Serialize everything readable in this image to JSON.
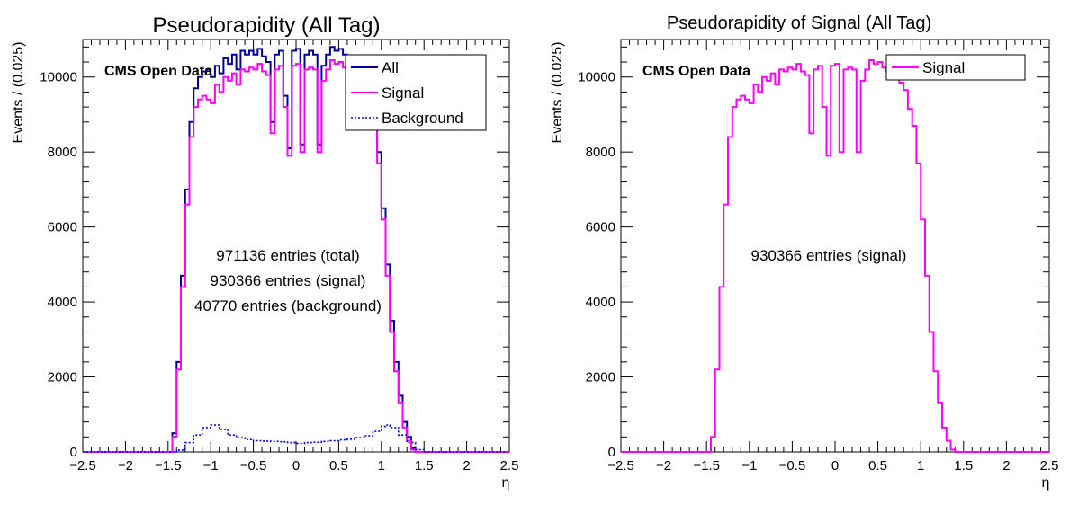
{
  "chart_data": [
    {
      "type": "line",
      "title": "Pseudorapidity (All Tag)",
      "xlabel": "η",
      "ylabel": "Events / (0.025)",
      "xlim": [
        -2.5,
        2.5
      ],
      "ylim": [
        0,
        11000
      ],
      "xticks": [
        -2.5,
        -2,
        -1.5,
        -1,
        -0.5,
        0,
        0.5,
        1,
        1.5,
        2,
        2.5
      ],
      "xtick_labels": [
        "−2.5",
        "−2",
        "−1.5",
        "−1",
        "−0.5",
        "0",
        "0.5",
        "1",
        "1.5",
        "2",
        "2.5"
      ],
      "yticks": [
        0,
        2000,
        4000,
        6000,
        8000,
        10000
      ],
      "ytick_labels": [
        "0",
        "2000",
        "4000",
        "6000",
        "8000",
        "10000"
      ],
      "grid": false,
      "legend_position": "top-right",
      "watermark": "CMS Open Data",
      "annotations": [
        "971136 entries (total)",
        "930366 entries (signal)",
        "40770 entries (background)"
      ],
      "series": [
        {
          "name": "All",
          "color": "#000099",
          "style": "solid",
          "x": [
            -1.5,
            -1.45,
            -1.4,
            -1.35,
            -1.3,
            -1.25,
            -1.2,
            -1.15,
            -1.1,
            -1.05,
            -1.0,
            -0.95,
            -0.9,
            -0.85,
            -0.8,
            -0.75,
            -0.7,
            -0.65,
            -0.6,
            -0.55,
            -0.5,
            -0.45,
            -0.4,
            -0.35,
            -0.3,
            -0.25,
            -0.2,
            -0.15,
            -0.1,
            -0.05,
            0.0,
            0.05,
            0.1,
            0.15,
            0.2,
            0.25,
            0.3,
            0.35,
            0.4,
            0.45,
            0.5,
            0.55,
            0.6,
            0.65,
            0.7,
            0.75,
            0.8,
            0.85,
            0.9,
            0.95,
            1.0,
            1.05,
            1.1,
            1.15,
            1.2,
            1.25,
            1.3,
            1.35,
            1.4,
            1.45,
            1.5
          ],
          "values": [
            0,
            500,
            2400,
            4700,
            7000,
            8800,
            9700,
            10000,
            10150,
            10200,
            10000,
            10300,
            10100,
            10500,
            10350,
            10600,
            10200,
            10700,
            10600,
            10700,
            10600,
            10750,
            10550,
            10400,
            8800,
            10600,
            10700,
            9500,
            8100,
            10700,
            10750,
            8200,
            10600,
            10700,
            10600,
            8200,
            10300,
            10600,
            10800,
            10700,
            10750,
            10600,
            10500,
            10400,
            10300,
            10200,
            10000,
            9500,
            9000,
            8000,
            6500,
            5000,
            3500,
            2400,
            1500,
            800,
            400,
            100,
            0,
            0,
            0
          ]
        },
        {
          "name": "Signal",
          "color": "#ff00ff",
          "style": "solid",
          "x": [
            -1.5,
            -1.45,
            -1.4,
            -1.35,
            -1.3,
            -1.25,
            -1.2,
            -1.15,
            -1.1,
            -1.05,
            -1.0,
            -0.95,
            -0.9,
            -0.85,
            -0.8,
            -0.75,
            -0.7,
            -0.65,
            -0.6,
            -0.55,
            -0.5,
            -0.45,
            -0.4,
            -0.35,
            -0.3,
            -0.25,
            -0.2,
            -0.15,
            -0.1,
            -0.05,
            0.0,
            0.05,
            0.1,
            0.15,
            0.2,
            0.25,
            0.3,
            0.35,
            0.4,
            0.45,
            0.5,
            0.55,
            0.6,
            0.65,
            0.7,
            0.75,
            0.8,
            0.85,
            0.9,
            0.95,
            1.0,
            1.05,
            1.1,
            1.15,
            1.2,
            1.25,
            1.3,
            1.35,
            1.4,
            1.45,
            1.5
          ],
          "values": [
            0,
            400,
            2200,
            4400,
            6600,
            8400,
            9200,
            9400,
            9500,
            9400,
            9300,
            9800,
            9600,
            10000,
            9900,
            10100,
            9800,
            10200,
            10150,
            10250,
            10200,
            10350,
            10150,
            10050,
            8500,
            10200,
            10300,
            9200,
            7900,
            10300,
            10350,
            8000,
            10200,
            10250,
            10200,
            8000,
            9900,
            10200,
            10450,
            10350,
            10400,
            10250,
            10150,
            10050,
            9950,
            9850,
            9650,
            9150,
            8700,
            7700,
            6200,
            4700,
            3200,
            2150,
            1300,
            650,
            300,
            60,
            0,
            0,
            0
          ]
        },
        {
          "name": "Background",
          "color": "#0000ff",
          "style": "dotted",
          "x": [
            -1.5,
            -1.4,
            -1.3,
            -1.2,
            -1.1,
            -1.0,
            -0.9,
            -0.8,
            -0.7,
            -0.6,
            -0.5,
            -0.4,
            -0.3,
            -0.2,
            -0.1,
            0.0,
            0.1,
            0.2,
            0.3,
            0.4,
            0.5,
            0.6,
            0.7,
            0.8,
            0.9,
            1.0,
            1.05,
            1.1,
            1.2,
            1.3,
            1.4,
            1.5
          ],
          "values": [
            0,
            50,
            250,
            450,
            650,
            720,
            600,
            450,
            380,
            330,
            300,
            290,
            280,
            270,
            250,
            230,
            250,
            260,
            280,
            300,
            320,
            340,
            380,
            430,
            550,
            680,
            720,
            650,
            450,
            250,
            60,
            0
          ]
        }
      ]
    },
    {
      "type": "line",
      "title": "Pseudorapidity of Signal (All Tag)",
      "xlabel": "η",
      "ylabel": "Events / (0.025)",
      "xlim": [
        -2.5,
        2.5
      ],
      "ylim": [
        0,
        11000
      ],
      "xticks": [
        -2.5,
        -2,
        -1.5,
        -1,
        -0.5,
        0,
        0.5,
        1,
        1.5,
        2,
        2.5
      ],
      "xtick_labels": [
        "−2.5",
        "−2",
        "−1.5",
        "−1",
        "−0.5",
        "0",
        "0.5",
        "1",
        "1.5",
        "2",
        "2.5"
      ],
      "yticks": [
        0,
        2000,
        4000,
        6000,
        8000,
        10000
      ],
      "ytick_labels": [
        "0",
        "2000",
        "4000",
        "6000",
        "8000",
        "10000"
      ],
      "grid": false,
      "legend_position": "top-right",
      "watermark": "CMS Open Data",
      "annotations": [
        "930366 entries (signal)"
      ],
      "series": [
        {
          "name": "Signal",
          "color": "#ff00ff",
          "style": "solid",
          "x": [
            -1.5,
            -1.45,
            -1.4,
            -1.35,
            -1.3,
            -1.25,
            -1.2,
            -1.15,
            -1.1,
            -1.05,
            -1.0,
            -0.95,
            -0.9,
            -0.85,
            -0.8,
            -0.75,
            -0.7,
            -0.65,
            -0.6,
            -0.55,
            -0.5,
            -0.45,
            -0.4,
            -0.35,
            -0.3,
            -0.25,
            -0.2,
            -0.15,
            -0.1,
            -0.05,
            0.0,
            0.05,
            0.1,
            0.15,
            0.2,
            0.25,
            0.3,
            0.35,
            0.4,
            0.45,
            0.5,
            0.55,
            0.6,
            0.65,
            0.7,
            0.75,
            0.8,
            0.85,
            0.9,
            0.95,
            1.0,
            1.05,
            1.1,
            1.15,
            1.2,
            1.25,
            1.3,
            1.35,
            1.4,
            1.45,
            1.5
          ],
          "values": [
            0,
            400,
            2200,
            4400,
            6600,
            8400,
            9200,
            9400,
            9500,
            9400,
            9300,
            9800,
            9600,
            10000,
            9900,
            10100,
            9800,
            10200,
            10150,
            10250,
            10200,
            10350,
            10150,
            10050,
            8500,
            10200,
            10300,
            9200,
            7900,
            10300,
            10350,
            8000,
            10200,
            10250,
            10200,
            8000,
            9900,
            10200,
            10450,
            10350,
            10400,
            10250,
            10150,
            10050,
            9950,
            9850,
            9650,
            9150,
            8700,
            7700,
            6200,
            4700,
            3200,
            2150,
            1300,
            650,
            300,
            60,
            0,
            0,
            0
          ]
        }
      ]
    }
  ]
}
